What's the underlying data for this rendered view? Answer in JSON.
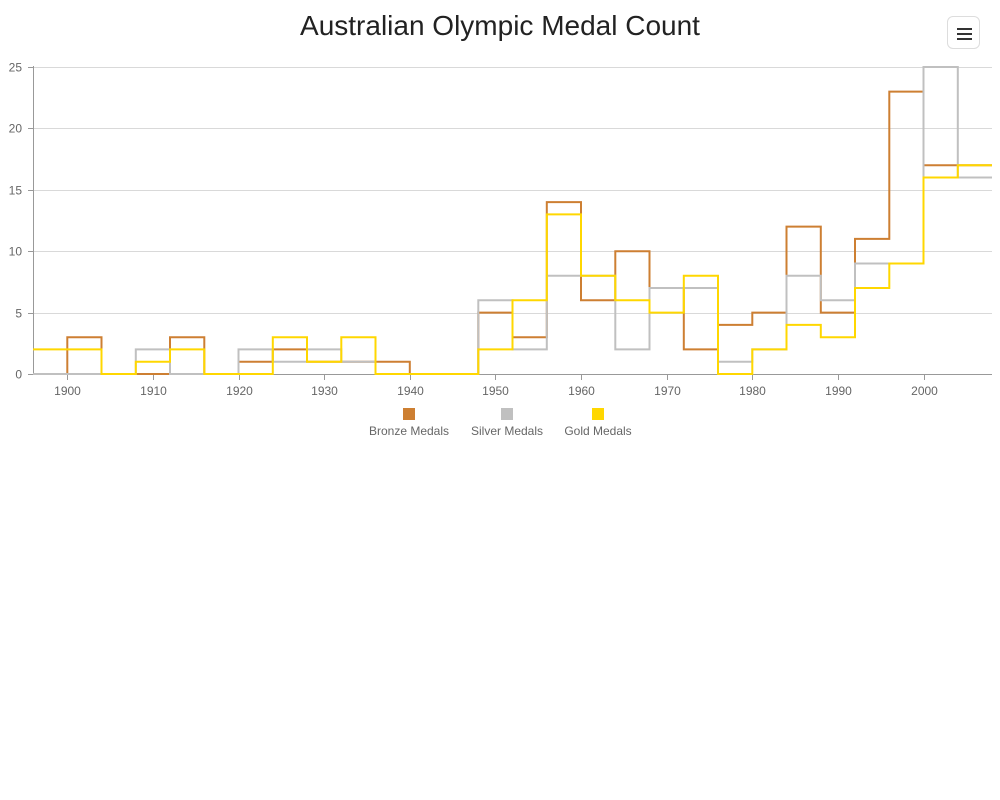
{
  "chart_data": {
    "type": "line",
    "step": true,
    "title": "Australian Olympic Medal Count",
    "xlabel": "",
    "ylabel": "",
    "xlim": [
      1896,
      2008
    ],
    "ylim": [
      0,
      25
    ],
    "x_ticks": [
      1900,
      1910,
      1920,
      1930,
      1940,
      1950,
      1960,
      1970,
      1980,
      1990,
      2000
    ],
    "y_ticks": [
      0,
      5,
      10,
      15,
      20,
      25
    ],
    "grid": true,
    "legend_position": "bottom",
    "x": [
      1896,
      1900,
      1904,
      1908,
      1912,
      1916,
      1920,
      1924,
      1928,
      1932,
      1936,
      1940,
      1944,
      1948,
      1952,
      1956,
      1960,
      1964,
      1968,
      1972,
      1976,
      1980,
      1984,
      1988,
      1992,
      1996,
      2000,
      2004
    ],
    "series": [
      {
        "name": "Bronze Medals",
        "color": "#CD7F32",
        "values": [
          0,
          3,
          0,
          0,
          3,
          0,
          1,
          2,
          1,
          1,
          1,
          0,
          0,
          5,
          3,
          14,
          6,
          10,
          7,
          2,
          4,
          5,
          12,
          5,
          11,
          23,
          17,
          17
        ]
      },
      {
        "name": "Silver Medals",
        "color": "#C0C0C0",
        "values": [
          0,
          0,
          0,
          2,
          0,
          0,
          2,
          1,
          2,
          1,
          0,
          0,
          0,
          6,
          2,
          8,
          8,
          2,
          7,
          7,
          1,
          2,
          8,
          6,
          9,
          9,
          25,
          16
        ]
      },
      {
        "name": "Gold Medals",
        "color": "#FFD700",
        "values": [
          2,
          2,
          0,
          1,
          2,
          0,
          0,
          3,
          1,
          3,
          0,
          0,
          0,
          2,
          6,
          13,
          8,
          6,
          5,
          8,
          0,
          2,
          4,
          3,
          7,
          9,
          16,
          17
        ]
      }
    ]
  },
  "toolbar": {
    "menu_icon": "hamburger-menu-icon"
  }
}
